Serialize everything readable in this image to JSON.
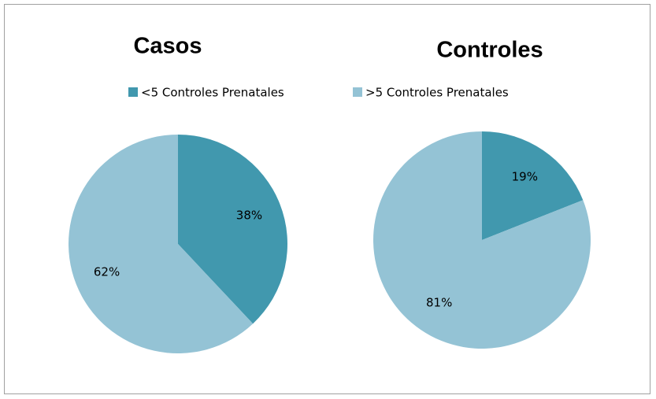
{
  "legend": {
    "labels": [
      "<5 Controles Prenatales",
      ">5 Controles Prenatales"
    ],
    "colors": [
      "#4198ae",
      "#94c3d5"
    ]
  },
  "chart_data": [
    {
      "type": "pie",
      "title": "Casos",
      "values": [
        38,
        62
      ],
      "value_labels": [
        "38%",
        "62%"
      ]
    },
    {
      "type": "pie",
      "title": "Controles",
      "values": [
        19,
        81
      ],
      "value_labels": [
        "19%",
        "81%"
      ]
    }
  ]
}
